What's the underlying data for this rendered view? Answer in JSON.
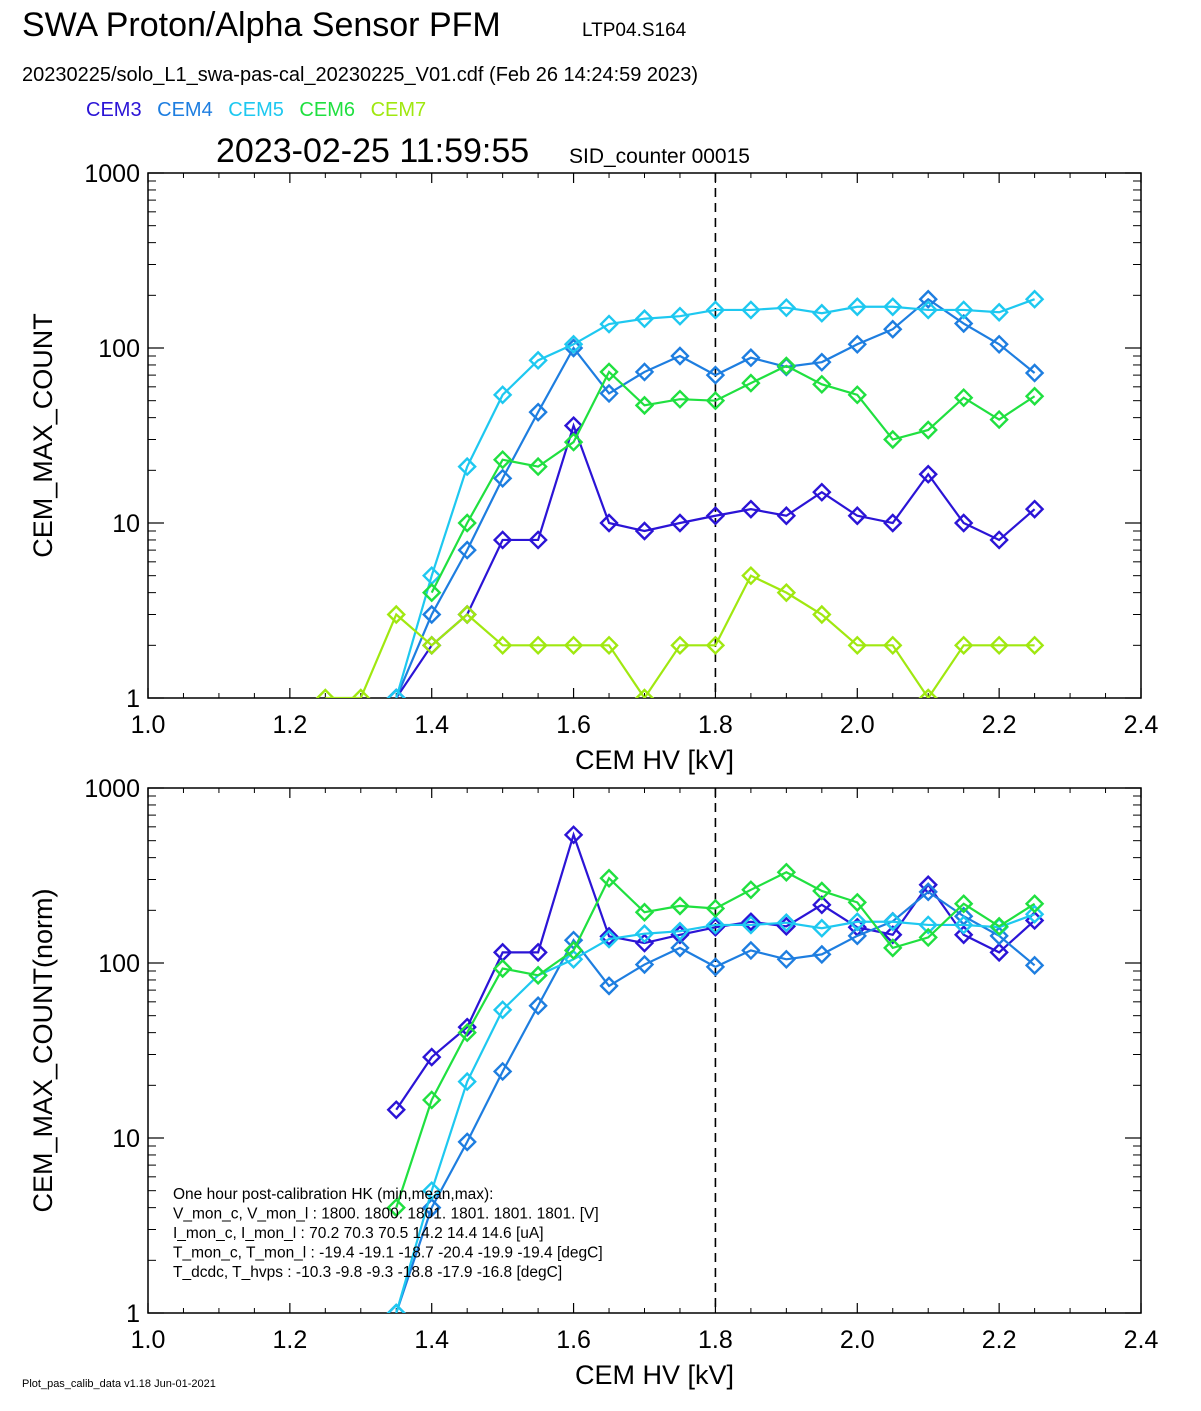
{
  "header": {
    "title": "SWA Proton/Alpha Sensor PFM",
    "test_id": "LTP04.S164",
    "file_line": "20230225/solo_L1_swa-pas-cal_20230225_V01.cdf  (Feb 26 14:24:59 2023)",
    "timestamp": "2023-02-25 11:59:55",
    "sid": "SID_counter 00015"
  },
  "legend": [
    {
      "name": "CEM3",
      "color": "#2b14d6"
    },
    {
      "name": "CEM4",
      "color": "#1e7ee0"
    },
    {
      "name": "CEM5",
      "color": "#1ec8f0"
    },
    {
      "name": "CEM6",
      "color": "#20e040"
    },
    {
      "name": "CEM7",
      "color": "#a0e810"
    }
  ],
  "footer": "Plot_pas_calib_data v1.18 Jun-01-2021",
  "hk_box": {
    "lines": [
      "One hour post-calibration HK (min,mean,max):",
      "V_mon_c, V_mon_l :    1800.   1800.   1801.       1801.   1801.   1801.  [V]",
      "I_mon_c,  I_mon_l :      70.2    70.3   70.5         14.2   14.4   14.6  [uA]",
      "T_mon_c, T_mon_l :    -19.4  -19.1  -18.7        -20.4  -19.9  -19.4  [degC]",
      "T_dcdc,    T_hvps :     -10.3    -9.8   -9.3         -18.8  -17.9  -16.8  [degC]"
    ]
  },
  "chart_data": [
    {
      "type": "line",
      "xlabel": "CEM HV [kV]",
      "ylabel": "CEM_MAX_COUNT",
      "xlim": [
        1.0,
        2.4
      ],
      "ylim": [
        1,
        1000
      ],
      "yscale": "log",
      "xticks": [
        "1.0",
        "1.2",
        "1.4",
        "1.6",
        "1.8",
        "2.0",
        "2.2",
        "2.4"
      ],
      "yticks": [
        "1",
        "10",
        "100",
        "1000"
      ],
      "vline_x": 1.8,
      "series": [
        {
          "name": "CEM3",
          "color": "#2b14d6",
          "points": [
            [
              1.35,
              1
            ],
            [
              1.4,
              2
            ],
            [
              1.45,
              3
            ],
            [
              1.5,
              8
            ],
            [
              1.55,
              8
            ],
            [
              1.6,
              36
            ],
            [
              1.65,
              10
            ],
            [
              1.7,
              9
            ],
            [
              1.75,
              10
            ],
            [
              1.8,
              11
            ],
            [
              1.85,
              12
            ],
            [
              1.9,
              11
            ],
            [
              1.95,
              15
            ],
            [
              2.0,
              11
            ],
            [
              2.05,
              10
            ],
            [
              2.1,
              19
            ],
            [
              2.15,
              10
            ],
            [
              2.2,
              8
            ],
            [
              2.25,
              12
            ]
          ]
        },
        {
          "name": "CEM4",
          "color": "#1e7ee0",
          "points": [
            [
              1.35,
              1
            ],
            [
              1.4,
              3
            ],
            [
              1.45,
              7
            ],
            [
              1.5,
              18
            ],
            [
              1.55,
              43
            ],
            [
              1.6,
              100
            ],
            [
              1.65,
              55
            ],
            [
              1.7,
              73
            ],
            [
              1.75,
              90
            ],
            [
              1.8,
              70
            ],
            [
              1.85,
              88
            ],
            [
              1.9,
              78
            ],
            [
              1.95,
              83
            ],
            [
              2.0,
              105
            ],
            [
              2.05,
              128
            ],
            [
              2.1,
              190
            ],
            [
              2.15,
              138
            ],
            [
              2.2,
              105
            ],
            [
              2.25,
              72
            ]
          ]
        },
        {
          "name": "CEM5",
          "color": "#1ec8f0",
          "points": [
            [
              1.35,
              1
            ],
            [
              1.4,
              5
            ],
            [
              1.45,
              21
            ],
            [
              1.5,
              54
            ],
            [
              1.55,
              85
            ],
            [
              1.6,
              105
            ],
            [
              1.65,
              137
            ],
            [
              1.7,
              147
            ],
            [
              1.75,
              152
            ],
            [
              1.8,
              165
            ],
            [
              1.85,
              165
            ],
            [
              1.9,
              170
            ],
            [
              1.95,
              158
            ],
            [
              2.0,
              172
            ],
            [
              2.05,
              172
            ],
            [
              2.1,
              165
            ],
            [
              2.15,
              165
            ],
            [
              2.2,
              160
            ],
            [
              2.25,
              190
            ]
          ]
        },
        {
          "name": "CEM6",
          "color": "#20e040",
          "points": [
            [
              1.4,
              4
            ],
            [
              1.45,
              10
            ],
            [
              1.5,
              23
            ],
            [
              1.55,
              21
            ],
            [
              1.6,
              29
            ],
            [
              1.65,
              73
            ],
            [
              1.7,
              47
            ],
            [
              1.75,
              51
            ],
            [
              1.8,
              50
            ],
            [
              1.85,
              63
            ],
            [
              1.9,
              79
            ],
            [
              1.95,
              62
            ],
            [
              2.0,
              54
            ],
            [
              2.05,
              30
            ],
            [
              2.1,
              34
            ],
            [
              2.15,
              52
            ],
            [
              2.2,
              39
            ],
            [
              2.25,
              53
            ]
          ]
        },
        {
          "name": "CEM7",
          "color": "#a0e810",
          "points": [
            [
              1.25,
              1
            ],
            [
              1.3,
              1
            ],
            [
              1.35,
              3
            ],
            [
              1.4,
              2
            ],
            [
              1.45,
              3
            ],
            [
              1.5,
              2
            ],
            [
              1.55,
              2
            ],
            [
              1.6,
              2
            ],
            [
              1.65,
              2
            ],
            [
              1.7,
              1
            ],
            [
              1.75,
              2
            ],
            [
              1.8,
              2
            ],
            [
              1.85,
              5
            ],
            [
              1.9,
              4
            ],
            [
              1.95,
              3
            ],
            [
              2.0,
              2
            ],
            [
              2.05,
              2
            ],
            [
              2.1,
              1
            ],
            [
              2.15,
              2
            ],
            [
              2.2,
              2
            ],
            [
              2.25,
              2
            ]
          ]
        }
      ]
    },
    {
      "type": "line",
      "xlabel": "CEM HV [kV]",
      "ylabel": "CEM_MAX_COUNT(norm)",
      "xlim": [
        1.0,
        2.4
      ],
      "ylim": [
        1,
        1000
      ],
      "yscale": "log",
      "xticks": [
        "1.0",
        "1.2",
        "1.4",
        "1.6",
        "1.8",
        "2.0",
        "2.2",
        "2.4"
      ],
      "yticks": [
        "1",
        "10",
        "100",
        "1000"
      ],
      "vline_x": 1.8,
      "series": [
        {
          "name": "CEM3",
          "color": "#2b14d6",
          "points": [
            [
              1.35,
              14.5
            ],
            [
              1.4,
              29
            ],
            [
              1.45,
              43
            ],
            [
              1.5,
              115
            ],
            [
              1.55,
              115
            ],
            [
              1.6,
              540
            ],
            [
              1.65,
              142
            ],
            [
              1.7,
              130
            ],
            [
              1.75,
              145
            ],
            [
              1.8,
              160
            ],
            [
              1.85,
              172
            ],
            [
              1.9,
              162
            ],
            [
              1.95,
              215
            ],
            [
              2.0,
              160
            ],
            [
              2.05,
              145
            ],
            [
              2.1,
              280
            ],
            [
              2.15,
              145
            ],
            [
              2.2,
              115
            ],
            [
              2.25,
              175
            ]
          ]
        },
        {
          "name": "CEM4",
          "color": "#1e7ee0",
          "points": [
            [
              1.35,
              1
            ],
            [
              1.4,
              4
            ],
            [
              1.45,
              9.5
            ],
            [
              1.5,
              24
            ],
            [
              1.55,
              57
            ],
            [
              1.6,
              135
            ],
            [
              1.65,
              74
            ],
            [
              1.7,
              98
            ],
            [
              1.75,
              122
            ],
            [
              1.8,
              95
            ],
            [
              1.85,
              118
            ],
            [
              1.9,
              105
            ],
            [
              1.95,
              112
            ],
            [
              2.0,
              143
            ],
            [
              2.05,
              173
            ],
            [
              2.1,
              255
            ],
            [
              2.15,
              185
            ],
            [
              2.2,
              143
            ],
            [
              2.25,
              97
            ]
          ]
        },
        {
          "name": "CEM5",
          "color": "#1ec8f0",
          "points": [
            [
              1.35,
              1
            ],
            [
              1.4,
              5
            ],
            [
              1.45,
              21
            ],
            [
              1.5,
              54
            ],
            [
              1.55,
              85
            ],
            [
              1.6,
              105
            ],
            [
              1.65,
              137
            ],
            [
              1.7,
              147
            ],
            [
              1.75,
              152
            ],
            [
              1.8,
              165
            ],
            [
              1.85,
              165
            ],
            [
              1.9,
              170
            ],
            [
              1.95,
              158
            ],
            [
              2.0,
              172
            ],
            [
              2.05,
              172
            ],
            [
              2.1,
              165
            ],
            [
              2.15,
              165
            ],
            [
              2.2,
              160
            ],
            [
              2.25,
              190
            ]
          ]
        },
        {
          "name": "CEM6",
          "color": "#20e040",
          "points": [
            [
              1.35,
              4
            ],
            [
              1.4,
              16.5
            ],
            [
              1.45,
              40
            ],
            [
              1.5,
              93
            ],
            [
              1.55,
              85
            ],
            [
              1.6,
              118
            ],
            [
              1.65,
              305
            ],
            [
              1.7,
              195
            ],
            [
              1.75,
              212
            ],
            [
              1.8,
              205
            ],
            [
              1.85,
              262
            ],
            [
              1.9,
              330
            ],
            [
              1.95,
              258
            ],
            [
              2.0,
              222
            ],
            [
              2.05,
              122
            ],
            [
              2.1,
              140
            ],
            [
              2.15,
              218
            ],
            [
              2.2,
              162
            ],
            [
              2.25,
              218
            ]
          ]
        }
      ]
    }
  ]
}
